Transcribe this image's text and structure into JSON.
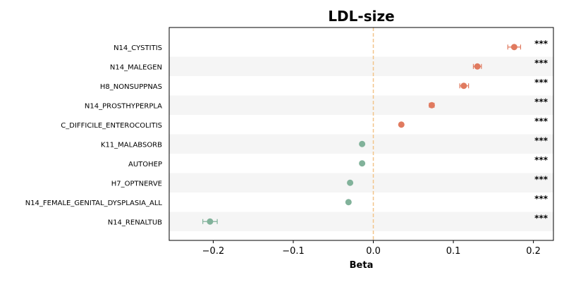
{
  "chart_data": {
    "type": "scatter",
    "title": "LDL-size",
    "xlabel": "Beta",
    "ylabel": "",
    "xlim": [
      -0.255,
      0.225
    ],
    "xticks": [
      -0.2,
      -0.1,
      0.0,
      0.1,
      0.2
    ],
    "xtick_labels": [
      "−0.2",
      "−0.1",
      "0.0",
      "0.1",
      "0.2"
    ],
    "reference_line": {
      "x": 0.0,
      "style": "dashed",
      "color": "#f2c48a"
    },
    "grid": false,
    "legend": "none",
    "colors": {
      "positive": "#e07a5f",
      "negative": "#81b29a",
      "band": "#f5f5f5"
    },
    "points": [
      {
        "category": "N14_CYSTITIS",
        "beta": 0.176,
        "ci_low": 0.168,
        "ci_high": 0.184,
        "significance": "***"
      },
      {
        "category": "N14_MALEGEN",
        "beta": 0.13,
        "ci_low": 0.125,
        "ci_high": 0.135,
        "significance": "***"
      },
      {
        "category": "H8_NONSUPPNAS",
        "beta": 0.113,
        "ci_low": 0.108,
        "ci_high": 0.119,
        "significance": "***"
      },
      {
        "category": "N14_PROSTHYPERPLA",
        "beta": 0.073,
        "ci_low": 0.07,
        "ci_high": 0.076,
        "significance": "***"
      },
      {
        "category": "C_DIFFICILE_ENTEROCOLITIS",
        "beta": 0.035,
        "ci_low": 0.034,
        "ci_high": 0.036,
        "significance": "***"
      },
      {
        "category": "K11_MALABSORB",
        "beta": -0.014,
        "ci_low": -0.015,
        "ci_high": -0.013,
        "significance": "***"
      },
      {
        "category": "AUTOHEP",
        "beta": -0.014,
        "ci_low": -0.015,
        "ci_high": -0.013,
        "significance": "***"
      },
      {
        "category": "H7_OPTNERVE",
        "beta": -0.029,
        "ci_low": -0.03,
        "ci_high": -0.028,
        "significance": "***"
      },
      {
        "category": "N14_FEMALE_GENITAL_DYSPLASIA_ALL",
        "beta": -0.031,
        "ci_low": -0.032,
        "ci_high": -0.03,
        "significance": "***"
      },
      {
        "category": "N14_RENALTUB",
        "beta": -0.204,
        "ci_low": -0.213,
        "ci_high": -0.195,
        "significance": "***"
      }
    ]
  }
}
